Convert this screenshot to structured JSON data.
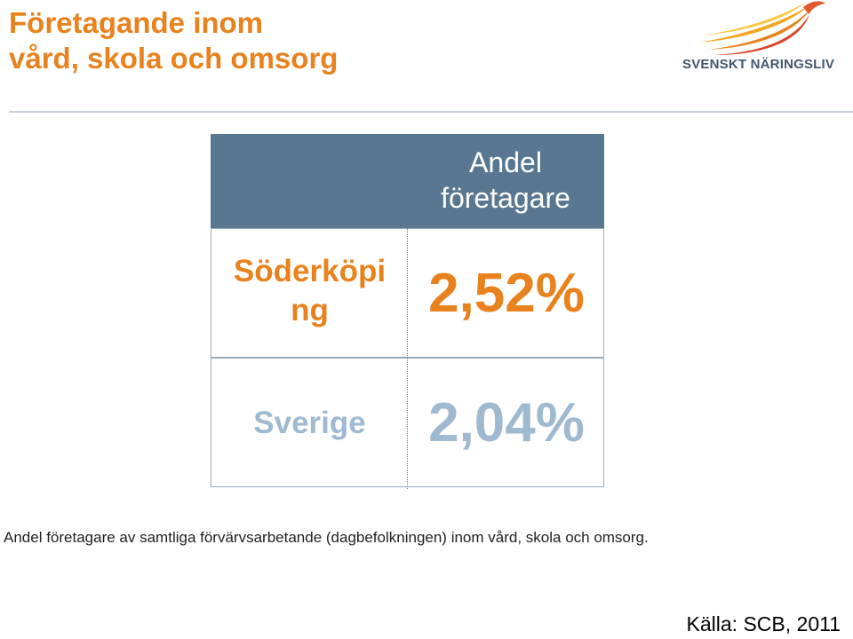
{
  "title": {
    "line1": "Företagande inom",
    "line2": "vård, skola och omsorg"
  },
  "logo": {
    "text": "SVENSKT NÄRINGSLIV",
    "icon": "wing-flame-logo-icon"
  },
  "table": {
    "header": "Andel företagare",
    "rows": [
      {
        "label": "Söderköpi ng",
        "value": "2,52%"
      },
      {
        "label": "Sverige",
        "value": "2,04%"
      }
    ]
  },
  "caption": "Andel företagare av samtliga förvärvsarbetande (dagbefolkningen) inom vård, skola och omsorg.",
  "source": "Källa: SCB, 2011",
  "colors": {
    "orange": "#e8821e",
    "header_bg": "#5a7791",
    "light_blue": "#9fb9d1",
    "logo_text": "#3f566f"
  }
}
